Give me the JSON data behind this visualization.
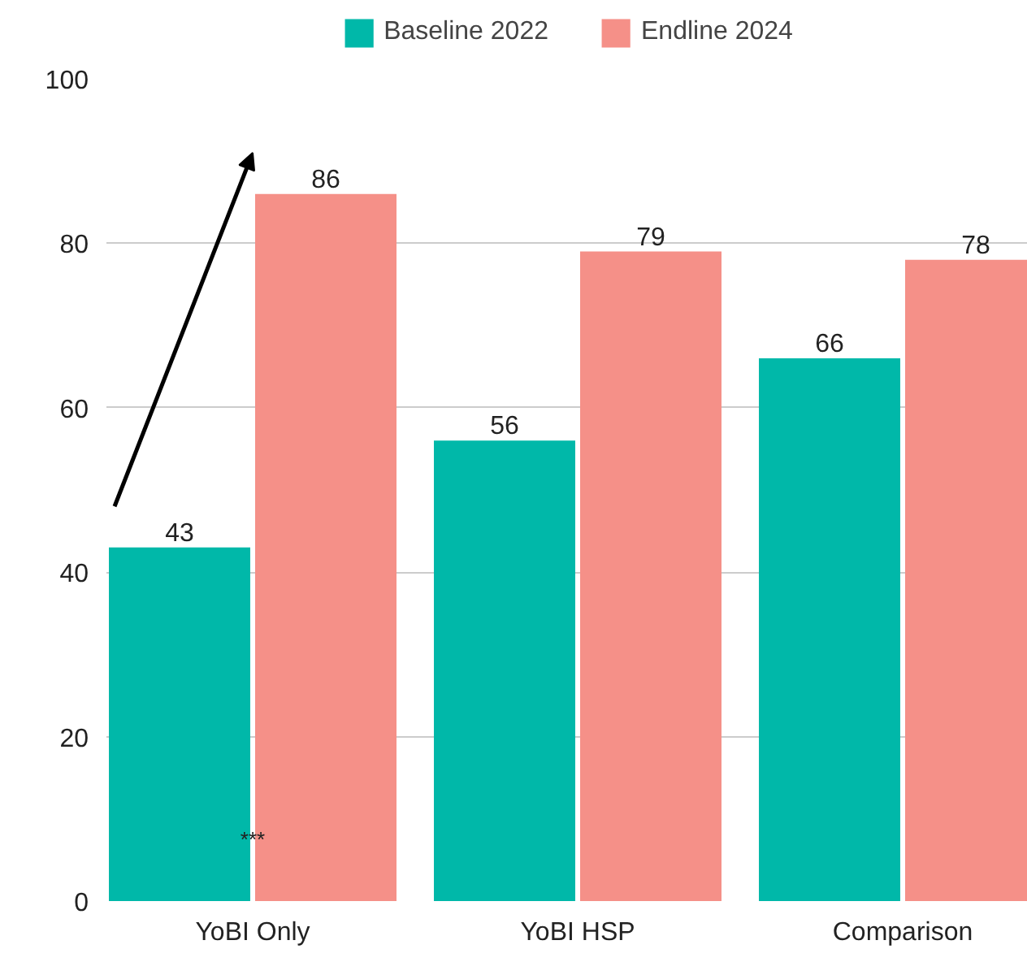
{
  "chart_data": {
    "type": "bar",
    "categories": [
      "YoBI Only",
      "YoBI HSP",
      "Comparison"
    ],
    "series": [
      {
        "name": "Baseline 2022",
        "color": "#00b8a9",
        "values": [
          43,
          56,
          66
        ]
      },
      {
        "name": "Endline 2024",
        "color": "#f59088",
        "values": [
          86,
          79,
          78
        ]
      }
    ],
    "ylim": [
      0,
      100
    ],
    "yticks": [
      0,
      20,
      40,
      60,
      80,
      100
    ],
    "grid": "y",
    "legend": "top",
    "data_labels": true,
    "annotations": [
      {
        "text": "***",
        "x": "YoBI Only",
        "y": 6
      }
    ]
  }
}
